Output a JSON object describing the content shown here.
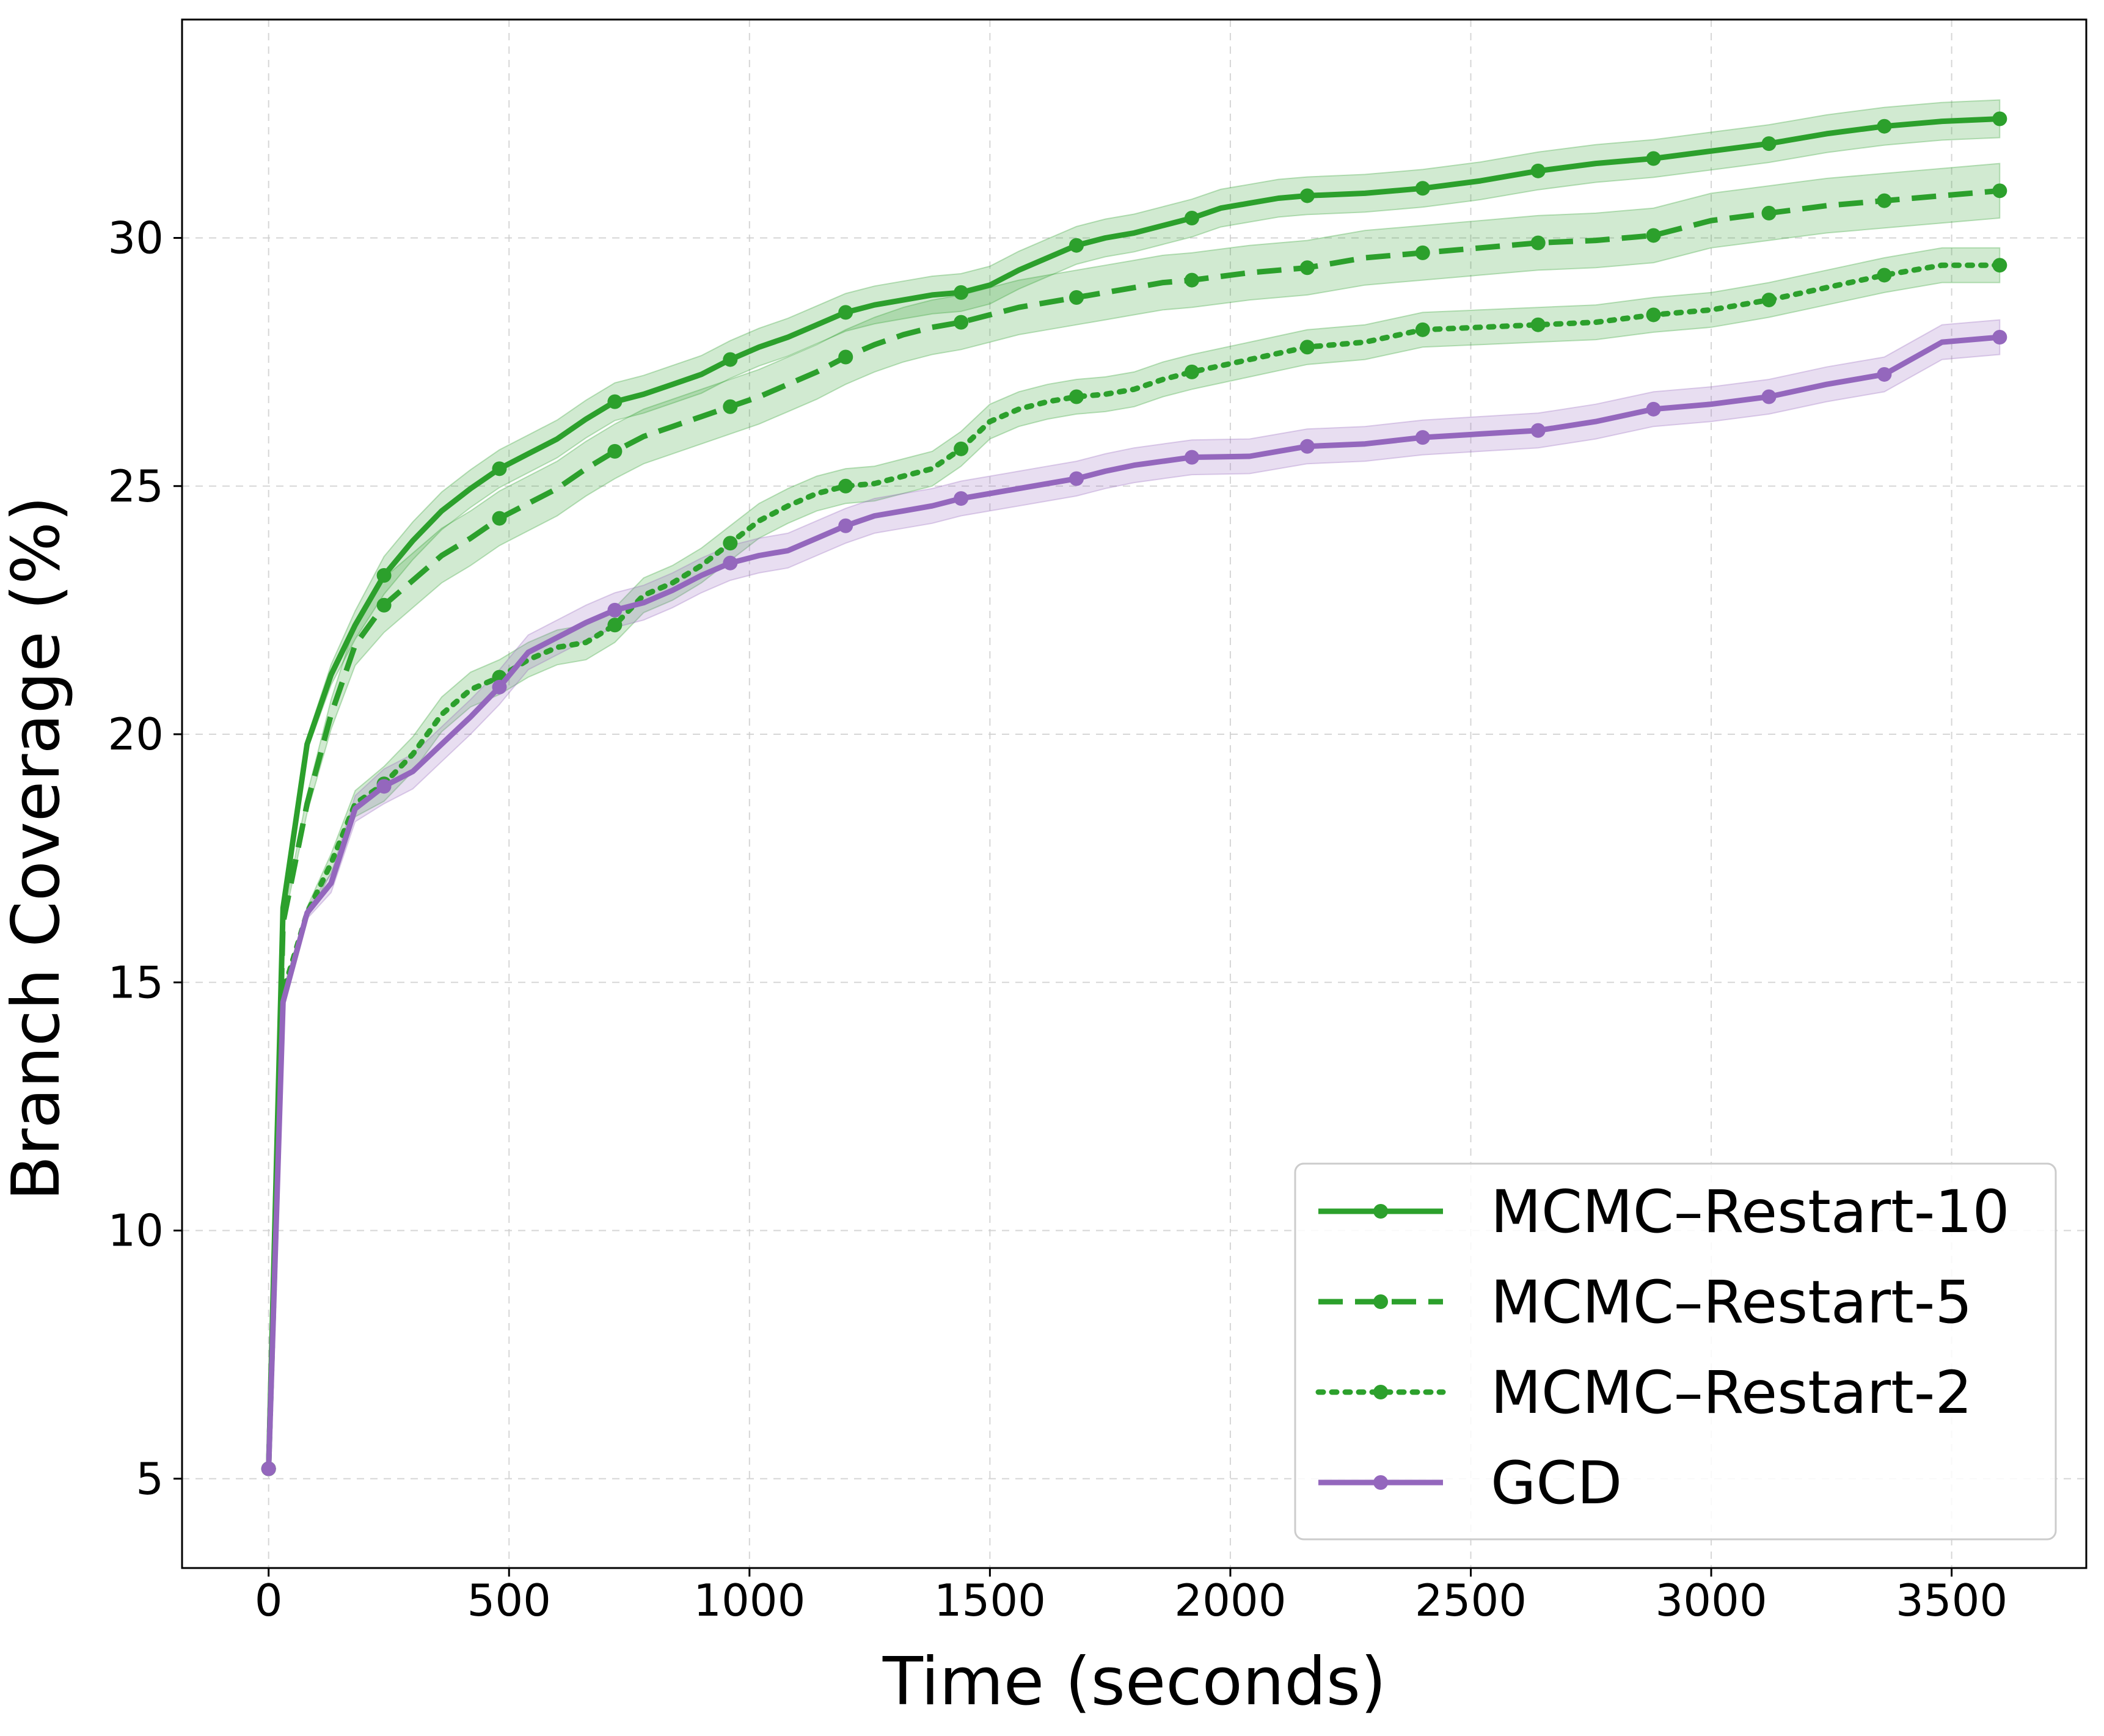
{
  "chart_data": {
    "type": "line",
    "title": "",
    "xlabel": "Time (seconds)",
    "ylabel": "Branch Coverage (%)",
    "xlim": [
      -180,
      3780
    ],
    "ylim": [
      3.2,
      34.4
    ],
    "xticks": [
      0,
      500,
      1000,
      1500,
      2000,
      2500,
      3000,
      3500
    ],
    "yticks": [
      5,
      10,
      15,
      20,
      25,
      30
    ],
    "grid": true,
    "legend_position": "bottom-right",
    "markers_x": [
      0,
      240,
      480,
      720,
      960,
      1200,
      1440,
      1680,
      1920,
      2160,
      2400,
      2640,
      2880,
      3120,
      3360,
      3600
    ],
    "series": [
      {
        "name": "MCMC–Restart-10",
        "color": "#2ca02c",
        "dash": "solid",
        "band": 0.38,
        "x": [
          0,
          30,
          80,
          130,
          180,
          240,
          300,
          360,
          420,
          480,
          540,
          600,
          660,
          720,
          780,
          840,
          900,
          960,
          1020,
          1080,
          1140,
          1200,
          1260,
          1320,
          1380,
          1440,
          1500,
          1560,
          1620,
          1680,
          1740,
          1800,
          1860,
          1920,
          1980,
          2040,
          2100,
          2160,
          2280,
          2400,
          2520,
          2640,
          2760,
          2880,
          3000,
          3120,
          3240,
          3360,
          3480,
          3600
        ],
        "y": [
          5.2,
          16.5,
          19.8,
          21.2,
          22.2,
          23.2,
          23.9,
          24.5,
          24.95,
          25.35,
          25.65,
          25.95,
          26.35,
          26.7,
          26.85,
          27.05,
          27.25,
          27.55,
          27.8,
          28.0,
          28.25,
          28.5,
          28.65,
          28.75,
          28.85,
          28.9,
          29.05,
          29.35,
          29.6,
          29.85,
          30.0,
          30.1,
          30.25,
          30.4,
          30.6,
          30.7,
          30.8,
          30.85,
          30.9,
          31.0,
          31.15,
          31.35,
          31.5,
          31.6,
          31.75,
          31.9,
          32.1,
          32.25,
          32.35,
          32.4
        ]
      },
      {
        "name": "MCMC–Restart-5",
        "color": "#2ca02c",
        "dash": "dashed",
        "band": 0.55,
        "x": [
          0,
          30,
          80,
          130,
          180,
          240,
          300,
          360,
          420,
          480,
          540,
          600,
          660,
          720,
          780,
          840,
          900,
          960,
          1020,
          1080,
          1140,
          1200,
          1260,
          1320,
          1380,
          1440,
          1500,
          1560,
          1620,
          1680,
          1740,
          1800,
          1860,
          1920,
          2040,
          2160,
          2280,
          2400,
          2520,
          2640,
          2760,
          2880,
          3000,
          3120,
          3240,
          3360,
          3480,
          3600
        ],
        "y": [
          5.2,
          16.2,
          18.6,
          20.4,
          21.8,
          22.6,
          23.1,
          23.6,
          23.95,
          24.35,
          24.65,
          24.95,
          25.35,
          25.7,
          26.0,
          26.2,
          26.4,
          26.6,
          26.8,
          27.05,
          27.3,
          27.6,
          27.85,
          28.05,
          28.2,
          28.3,
          28.45,
          28.6,
          28.7,
          28.8,
          28.9,
          29.0,
          29.1,
          29.15,
          29.3,
          29.4,
          29.6,
          29.7,
          29.8,
          29.9,
          29.95,
          30.05,
          30.35,
          30.5,
          30.65,
          30.75,
          30.85,
          30.95
        ]
      },
      {
        "name": "MCMC–Restart-2",
        "color": "#2ca02c",
        "dash": "dotted",
        "band": 0.35,
        "x": [
          0,
          30,
          80,
          130,
          180,
          240,
          300,
          360,
          420,
          480,
          540,
          600,
          660,
          720,
          780,
          840,
          900,
          960,
          1020,
          1080,
          1140,
          1200,
          1260,
          1320,
          1380,
          1440,
          1500,
          1560,
          1620,
          1680,
          1740,
          1800,
          1860,
          1920,
          2040,
          2160,
          2280,
          2400,
          2520,
          2640,
          2760,
          2880,
          3000,
          3120,
          3240,
          3360,
          3480,
          3600
        ],
        "y": [
          5.2,
          14.8,
          16.4,
          17.4,
          18.6,
          19.0,
          19.6,
          20.4,
          20.9,
          21.15,
          21.5,
          21.75,
          21.85,
          22.2,
          22.8,
          23.05,
          23.4,
          23.85,
          24.3,
          24.6,
          24.85,
          25.0,
          25.05,
          25.2,
          25.35,
          25.75,
          26.3,
          26.55,
          26.7,
          26.8,
          26.85,
          26.95,
          27.15,
          27.3,
          27.55,
          27.8,
          27.9,
          28.15,
          28.2,
          28.25,
          28.3,
          28.45,
          28.55,
          28.75,
          29.0,
          29.25,
          29.45,
          29.45
        ]
      },
      {
        "name": "GCD",
        "color": "#9467bd",
        "dash": "solid",
        "band": 0.35,
        "x": [
          0,
          30,
          80,
          130,
          180,
          240,
          300,
          360,
          420,
          480,
          540,
          600,
          660,
          720,
          780,
          840,
          900,
          960,
          1020,
          1080,
          1140,
          1200,
          1260,
          1320,
          1380,
          1440,
          1500,
          1560,
          1620,
          1680,
          1740,
          1800,
          1860,
          1920,
          2040,
          2160,
          2280,
          2400,
          2520,
          2640,
          2760,
          2880,
          3000,
          3120,
          3240,
          3360,
          3480,
          3600
        ],
        "y": [
          5.2,
          14.6,
          16.4,
          17.0,
          18.5,
          18.95,
          19.25,
          19.8,
          20.35,
          20.95,
          21.65,
          21.95,
          22.25,
          22.5,
          22.65,
          22.9,
          23.2,
          23.45,
          23.6,
          23.7,
          23.95,
          24.2,
          24.4,
          24.5,
          24.6,
          24.75,
          24.85,
          24.95,
          25.05,
          25.15,
          25.3,
          25.42,
          25.5,
          25.58,
          25.6,
          25.8,
          25.85,
          25.98,
          26.05,
          26.12,
          26.3,
          26.55,
          26.65,
          26.8,
          27.05,
          27.25,
          27.9,
          28.0
        ]
      }
    ]
  }
}
